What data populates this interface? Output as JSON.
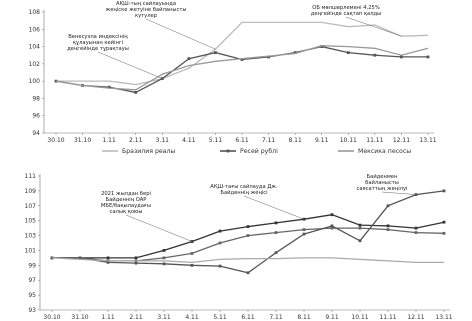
{
  "chart_data": [
    {
      "type": "line",
      "x": [
        "30.10",
        "31.10",
        "1.11",
        "2.11",
        "3.11",
        "4.11",
        "5.11",
        "6.11",
        "7.11",
        "8.11",
        "9.11",
        "10.11",
        "11.11",
        "12.11",
        "13.11"
      ],
      "ylim": [
        94,
        108
      ],
      "yticks": [
        94,
        96,
        98,
        100,
        102,
        104,
        106,
        108
      ],
      "grid": false,
      "legend": "bottom",
      "series": [
        {
          "name": "Бразилия реалы",
          "color": "#bbbbbb",
          "marker": "none",
          "values": [
            100,
            100,
            100,
            99.6,
            100.3,
            101.5,
            103.7,
            106.8,
            106.8,
            106.8,
            106.8,
            106.3,
            106.5,
            105.2,
            105.3
          ]
        },
        {
          "name": "Ресей рублі",
          "color": "#555555",
          "marker": "square",
          "values": [
            100,
            99.5,
            99.3,
            98.7,
            100.3,
            102.6,
            103.3,
            102.5,
            102.8,
            103.3,
            104.0,
            103.3,
            103.0,
            102.8,
            102.8
          ]
        },
        {
          "name": "Мексика песосы",
          "color": "#999999",
          "marker": "none",
          "values": [
            100,
            99.5,
            99.2,
            99.0,
            100.8,
            101.8,
            102.3,
            102.6,
            102.9,
            103.2,
            104.1,
            104.0,
            103.8,
            103.0,
            103.8
          ]
        }
      ],
      "annotations": [
        {
          "text": "АҚШ-тың сайлауында\nжеңіске жетуіне байланысты\nкүтулер",
          "x_index": 6
        },
        {
          "text": "ОБ мөлшерлемені 4,25%\nдеңгейінде сақтап қалды",
          "x_index": 13
        },
        {
          "text": "Венесуэла индексінің\nқұлауынан кейінгі\nдеңгейінде тұрақтауы",
          "x_index": 4
        }
      ]
    },
    {
      "type": "line",
      "x": [
        "30.10",
        "31.10",
        "1.11",
        "2.11",
        "3.11",
        "4.11",
        "5.11",
        "6.11",
        "7.11",
        "8.11",
        "9.11",
        "10.11",
        "11.11",
        "12.11",
        "13.11"
      ],
      "ylim": [
        93,
        111
      ],
      "yticks": [
        93,
        95,
        97,
        99,
        101,
        103,
        105,
        107,
        109,
        111
      ],
      "grid": false,
      "series": [
        {
          "name": "",
          "color": "#333333",
          "marker": "square",
          "values": [
            100,
            100,
            100,
            100,
            101,
            102.2,
            103.6,
            104.2,
            104.7,
            105.2,
            105.8,
            104.4,
            104.3,
            104.0,
            104.8
          ]
        },
        {
          "name": "",
          "color": "#666666",
          "marker": "square",
          "values": [
            100,
            100,
            99.6,
            99.6,
            100,
            100.6,
            102,
            103,
            103.4,
            103.8,
            104,
            104,
            103.8,
            103.4,
            103.3
          ]
        },
        {
          "name": "",
          "color": "#555555",
          "marker": "square",
          "values": [
            100,
            100,
            99.4,
            99.3,
            99.2,
            99.0,
            98.9,
            98.0,
            100.7,
            103.2,
            104.3,
            102.3,
            107.0,
            108.5,
            109.0
          ]
        },
        {
          "name": "",
          "color": "#aaaaaa",
          "marker": "none",
          "values": [
            100,
            99.8,
            99.6,
            99.6,
            99.6,
            99.4,
            99.8,
            99.9,
            99.9,
            100,
            100,
            99.8,
            99.6,
            99.4,
            99.4
          ]
        }
      ],
      "annotations": [
        {
          "text": "2021 жылдан бері\nБайденнің OAP\nMБЕ/бақылаудағы\nсалық қоюы",
          "x_index": 5
        },
        {
          "text": "АҚШ-тағы сайлауда Дж.\nБайденнің жеңісі",
          "x_index": 9
        },
        {
          "text": "Байденмен\nбайланысты\nсаясаттың жеңілуі",
          "x_index": 13
        }
      ]
    }
  ]
}
